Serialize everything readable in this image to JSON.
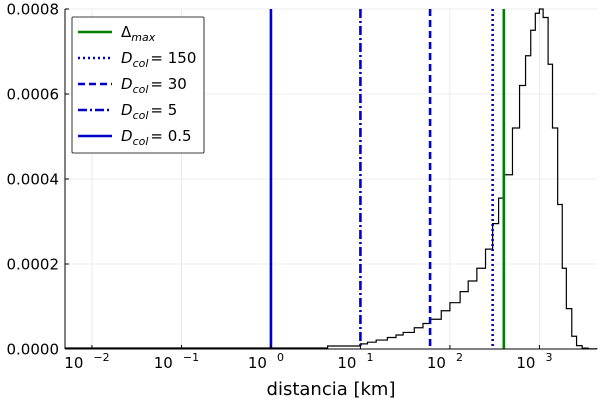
{
  "chart_data": {
    "type": "line",
    "title": "",
    "xlabel": "distancia [km]",
    "ylabel": "",
    "x_scale": "log",
    "xlim": [
      0.005,
      4400
    ],
    "ylim": [
      0,
      0.0008
    ],
    "grid": true,
    "legend_position": "top-left",
    "x_ticks": [
      0.01,
      0.1,
      1,
      10,
      100,
      1000
    ],
    "y_ticks": [
      {
        "value": 0,
        "label": "0.0000"
      },
      {
        "value": 0.0002,
        "label": "0.0002"
      },
      {
        "value": 0.0004,
        "label": "0.0004"
      },
      {
        "value": 0.0006,
        "label": "0.0006"
      },
      {
        "value": 0.0008,
        "label": "0.0008"
      }
    ],
    "density": {
      "color": "#000000",
      "x": [
        0.005,
        4.3,
        4.3,
        10,
        12,
        15,
        20,
        25,
        30,
        40,
        50,
        60,
        80,
        100,
        130,
        160,
        200,
        250,
        300,
        350,
        400,
        500,
        600,
        700,
        800,
        900,
        1000,
        1100,
        1250,
        1400,
        1600,
        1800,
        2000,
        2300,
        2600,
        3000,
        3500,
        4400
      ],
      "y": [
        2.5e-06,
        2.5e-06,
        7e-06,
        1.2e-05,
        1.6e-05,
        2.1e-05,
        2.7e-05,
        3.3e-05,
        3.9e-05,
        5e-05,
        6e-05,
        7e-05,
        9e-05,
        0.000109,
        0.000135,
        0.00016,
        0.00019,
        0.000235,
        0.000295,
        0.000355,
        0.00041,
        0.00052,
        0.00062,
        0.00069,
        0.00075,
        0.00079,
        0.0008,
        0.00078,
        0.00067,
        0.00052,
        0.00034,
        0.00019,
        9.5e-05,
        3e-05,
        8e-06,
        2e-06,
        5e-07,
        0
      ]
    },
    "vlines": [
      {
        "label_base": "Δ",
        "label_sub": "max",
        "label_value": "",
        "x": 400,
        "color": "#008000",
        "style": "solid"
      },
      {
        "label_base": "D",
        "label_sub": "col",
        "label_value": "= 150",
        "x": 300,
        "color": "#0000cc",
        "style": "dotted"
      },
      {
        "label_base": "D",
        "label_sub": "col",
        "label_value": "= 30",
        "x": 60,
        "color": "#0000cc",
        "style": "dashed"
      },
      {
        "label_base": "D",
        "label_sub": "col",
        "label_value": "= 5",
        "x": 10,
        "color": "#0000cc",
        "style": "dashdot"
      },
      {
        "label_base": "D",
        "label_sub": "col",
        "label_value": "= 0.5",
        "x": 1,
        "color": "#0000cc",
        "style": "solid"
      }
    ]
  }
}
